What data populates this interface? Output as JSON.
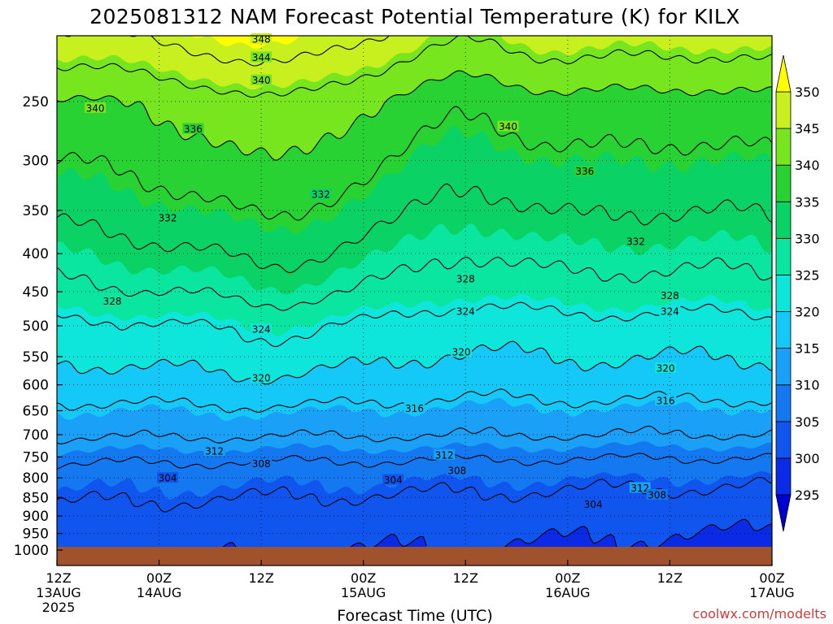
{
  "chart_data": {
    "type": "heatmap",
    "title": "2025081312 NAM Forecast Potential Temperature (K) for KILX",
    "xlabel": "Forecast Time (UTC)",
    "ylabel": "",
    "credit": "coolwx.com/modelts",
    "x_ticks": [
      {
        "hour": 0,
        "label": "12Z",
        "date": "13AUG",
        "year": "2025"
      },
      {
        "hour": 12,
        "label": "00Z",
        "date": "14AUG"
      },
      {
        "hour": 24,
        "label": "12Z"
      },
      {
        "hour": 36,
        "label": "00Z",
        "date": "15AUG"
      },
      {
        "hour": 48,
        "label": "12Z"
      },
      {
        "hour": 60,
        "label": "00Z",
        "date": "16AUG"
      },
      {
        "hour": 72,
        "label": "12Z"
      },
      {
        "hour": 84,
        "label": "00Z",
        "date": "17AUG"
      }
    ],
    "xlim": [
      0,
      84
    ],
    "y_scale": "log",
    "ylim": [
      1000,
      200
    ],
    "y_ticks": [
      250,
      300,
      350,
      400,
      450,
      500,
      550,
      600,
      650,
      700,
      750,
      800,
      850,
      900,
      950,
      1000
    ],
    "colorbar": {
      "levels": [
        295,
        300,
        305,
        310,
        315,
        320,
        325,
        330,
        335,
        340,
        345,
        350
      ],
      "labels": [
        "295",
        "300",
        "305",
        "310",
        "315",
        "320",
        "325",
        "330",
        "335",
        "340",
        "345",
        "350"
      ],
      "colors": [
        "#0000d0",
        "#0a2ae6",
        "#0f55ee",
        "#1478f0",
        "#1aa0f6",
        "#14c8f8",
        "#0ee6dc",
        "#0ae6a0",
        "#0ad264",
        "#28d232",
        "#78e61e",
        "#c8f01e",
        "#ffff00"
      ],
      "extend": "both"
    },
    "contour_labels": [
      {
        "value": "348",
        "hour": 24.0,
        "p": 206
      },
      {
        "value": "344",
        "hour": 24.0,
        "p": 218
      },
      {
        "value": "340",
        "hour": 24.0,
        "p": 234
      },
      {
        "value": "340",
        "hour": 4.5,
        "p": 255
      },
      {
        "value": "340",
        "hour": 53.0,
        "p": 270
      },
      {
        "value": "336",
        "hour": 16.0,
        "p": 272
      },
      {
        "value": "336",
        "hour": 62.0,
        "p": 310
      },
      {
        "value": "332",
        "hour": 31.0,
        "p": 333
      },
      {
        "value": "332",
        "hour": 13.0,
        "p": 358
      },
      {
        "value": "332",
        "hour": 68.0,
        "p": 385
      },
      {
        "value": "328",
        "hour": 48.0,
        "p": 432
      },
      {
        "value": "328",
        "hour": 6.5,
        "p": 463
      },
      {
        "value": "328",
        "hour": 72.0,
        "p": 455
      },
      {
        "value": "324",
        "hour": 48.0,
        "p": 478
      },
      {
        "value": "324",
        "hour": 72.0,
        "p": 478
      },
      {
        "value": "324",
        "hour": 24.0,
        "p": 505
      },
      {
        "value": "320",
        "hour": 47.5,
        "p": 542
      },
      {
        "value": "320",
        "hour": 24.0,
        "p": 587
      },
      {
        "value": "320",
        "hour": 71.5,
        "p": 570
      },
      {
        "value": "316",
        "hour": 42.0,
        "p": 645
      },
      {
        "value": "316",
        "hour": 71.5,
        "p": 630
      },
      {
        "value": "312",
        "hour": 18.5,
        "p": 736
      },
      {
        "value": "312",
        "hour": 45.5,
        "p": 745
      },
      {
        "value": "312",
        "hour": 68.5,
        "p": 825
      },
      {
        "value": "308",
        "hour": 24.0,
        "p": 765
      },
      {
        "value": "308",
        "hour": 47.0,
        "p": 782
      },
      {
        "value": "308",
        "hour": 70.5,
        "p": 843
      },
      {
        "value": "304",
        "hour": 13.0,
        "p": 800
      },
      {
        "value": "304",
        "hour": 39.5,
        "p": 805
      },
      {
        "value": "304",
        "hour": 63.0,
        "p": 868
      }
    ],
    "surface_p": 990,
    "surface_color": "#a0522d"
  }
}
